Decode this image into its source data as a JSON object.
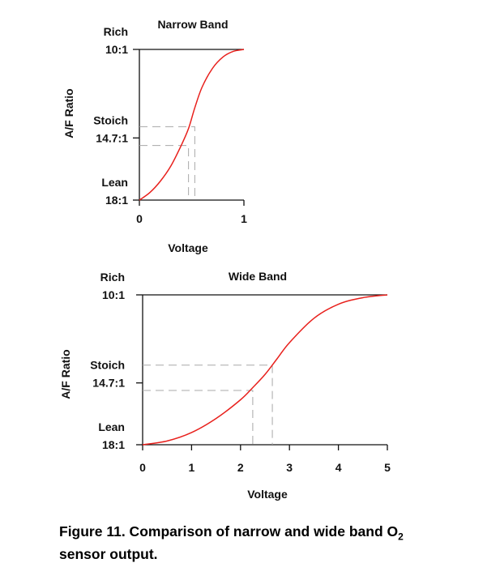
{
  "chart_data": [
    {
      "type": "line",
      "title": "Narrow Band",
      "xlabel": "Voltage",
      "ylabel": "A/F Ratio",
      "xlim": [
        0,
        1
      ],
      "ylim": [
        18,
        10
      ],
      "x_ticks": [
        "0",
        "1"
      ],
      "y_labels": [
        {
          "value": 10,
          "lines": [
            "Rich",
            "10:1"
          ]
        },
        {
          "value": 14.7,
          "lines": [
            "Stoich",
            "14.7:1"
          ]
        },
        {
          "value": 18,
          "lines": [
            "Lean",
            "18:1"
          ]
        }
      ],
      "curve_color": "#e8201c",
      "series": [
        {
          "x": [
            0,
            0.1,
            0.2,
            0.3,
            0.4,
            0.47,
            0.53,
            0.6,
            0.7,
            0.8,
            0.9,
            1.0
          ],
          "y": [
            18,
            17.6,
            17.0,
            16.2,
            15.1,
            14.2,
            13.1,
            12.0,
            11.0,
            10.4,
            10.1,
            10.0
          ]
        }
      ],
      "reference_lines": [
        {
          "x": 0.47,
          "y": 15.1
        },
        {
          "x": 0.53,
          "y": 14.1
        }
      ]
    },
    {
      "type": "line",
      "title": "Wide Band",
      "xlabel": "Voltage",
      "ylabel": "A/F Ratio",
      "xlim": [
        0,
        5
      ],
      "ylim": [
        18,
        10
      ],
      "x_ticks": [
        "0",
        "1",
        "2",
        "3",
        "4",
        "5"
      ],
      "y_labels": [
        {
          "value": 10,
          "lines": [
            "Rich",
            "10:1"
          ]
        },
        {
          "value": 14.7,
          "lines": [
            "Stoich",
            "14.7:1"
          ]
        },
        {
          "value": 18,
          "lines": [
            "Lean",
            "18:1"
          ]
        }
      ],
      "curve_color": "#e8201c",
      "series": [
        {
          "x": [
            0,
            0.5,
            1.0,
            1.5,
            2.0,
            2.25,
            2.5,
            2.75,
            3.0,
            3.5,
            4.0,
            4.5,
            5.0
          ],
          "y": [
            18,
            17.8,
            17.35,
            16.6,
            15.6,
            14.95,
            14.25,
            13.4,
            12.55,
            11.25,
            10.5,
            10.15,
            10.0
          ]
        }
      ],
      "reference_lines": [
        {
          "x": 2.25,
          "y": 15.1
        },
        {
          "x": 2.65,
          "y": 13.75
        }
      ]
    }
  ],
  "caption": {
    "prefix": "Figure 11.  Comparison of narrow and wide band O",
    "subscript": "2",
    "suffix": "sensor output."
  }
}
